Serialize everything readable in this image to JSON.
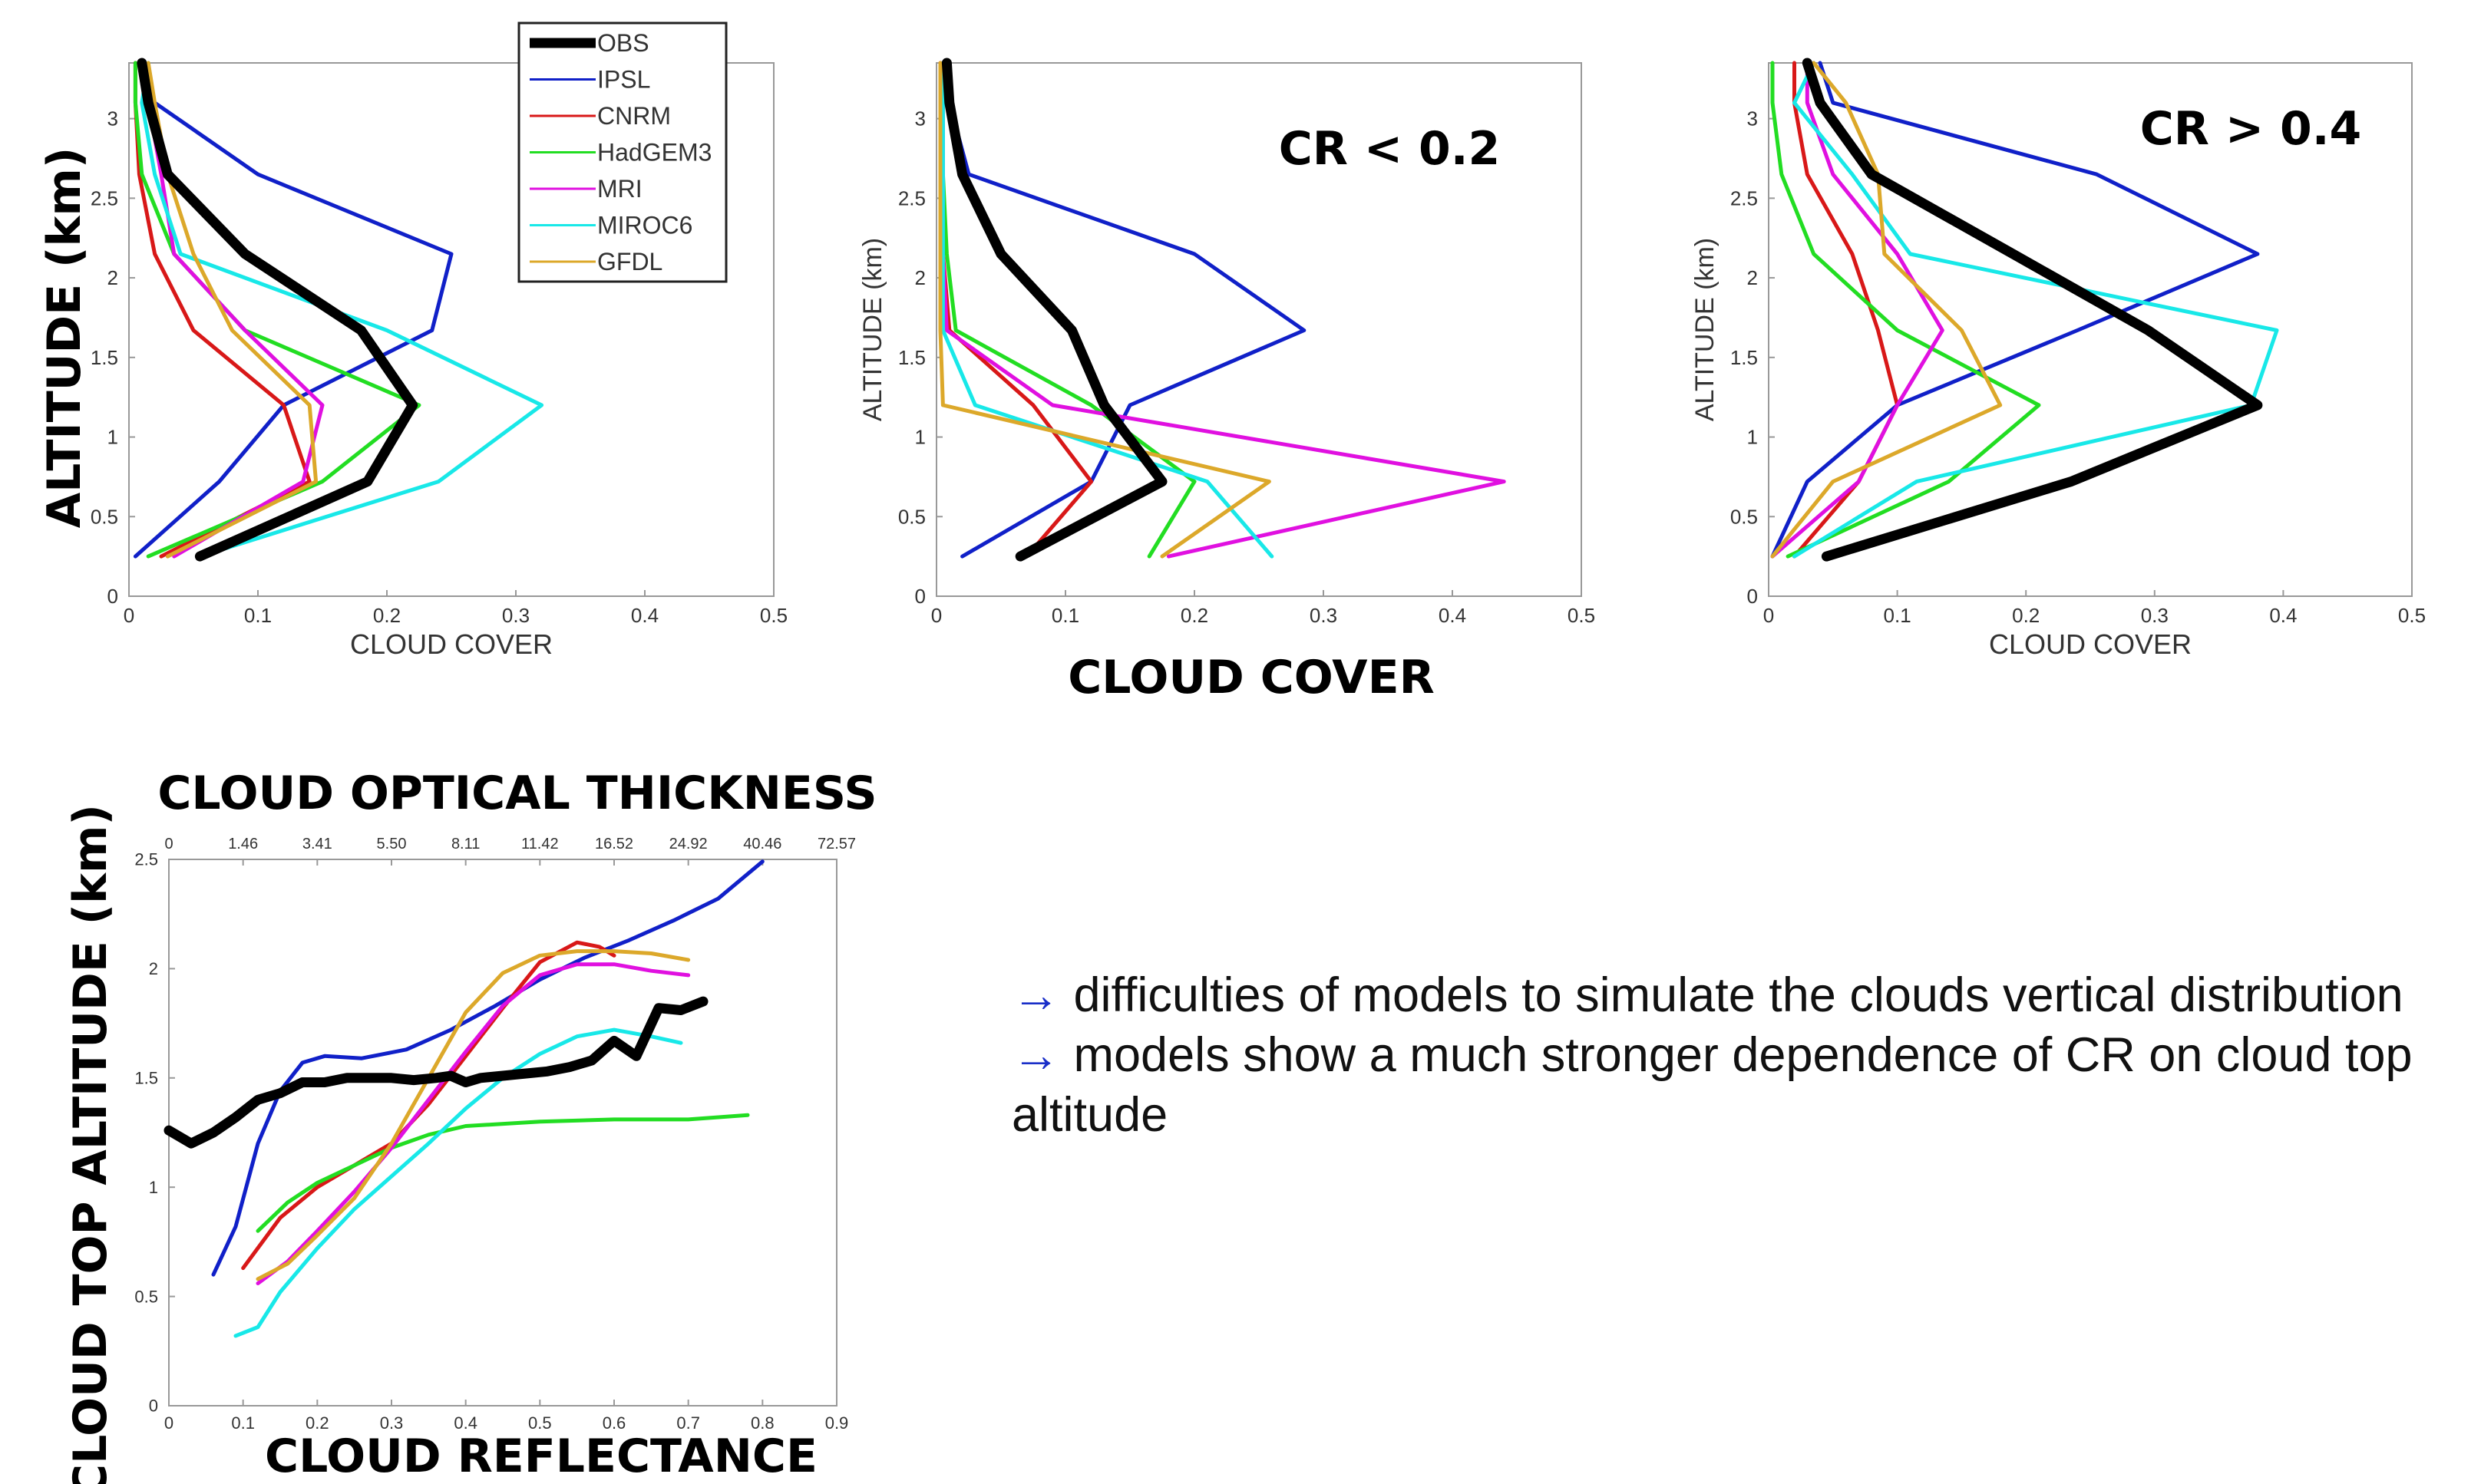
{
  "series_styles": {
    "OBS": {
      "color": "#000000",
      "width": 13
    },
    "IPSL": {
      "color": "#1020c8",
      "width": 5
    },
    "CNRM": {
      "color": "#d81818",
      "width": 5
    },
    "HadGEM3": {
      "color": "#22dd22",
      "width": 5
    },
    "MRI": {
      "color": "#e010e0",
      "width": 5
    },
    "MIROC6": {
      "color": "#18e8e8",
      "width": 5
    },
    "GFDL": {
      "color": "#dca82a",
      "width": 5
    }
  },
  "legend": {
    "entries": [
      "OBS",
      "IPSL",
      "CNRM",
      "HadGEM3",
      "MRI",
      "MIROC6",
      "GFDL"
    ]
  },
  "labels": {
    "left_ylabel": "ALTITUDE (km)",
    "center_xlabel": "CLOUD COVER",
    "bottom_top_title": "CLOUD OPTICAL THICKNESS",
    "bottom_ylabel": "CLOUD TOP ALTITUDE (km)",
    "bottom_xlabel": "CLOUD REFLECTANCE"
  },
  "notes": {
    "arrow": "→",
    "line1": "difficulties of models to simulate the clouds vertical distribution",
    "line2": "models show a much stronger dependence of CR on cloud top altitude"
  },
  "chart_data": [
    {
      "type": "line",
      "annotation": "",
      "xlabel": "CLOUD COVER",
      "ylabel": "ALTITUDE (km)",
      "xlim": [
        0,
        0.5
      ],
      "ylim": [
        0,
        3.35
      ],
      "xticks": [
        "0",
        "0.1",
        "0.2",
        "0.3",
        "0.4",
        "0.5"
      ],
      "yticks": [
        "0",
        "0.5",
        "1",
        "1.5",
        "2",
        "2.5",
        "3"
      ],
      "series": [
        {
          "name": "OBS",
          "x": [
            0.055,
            0.185,
            0.22,
            0.18,
            0.09,
            0.03,
            0.015,
            0.01
          ],
          "y": [
            0.25,
            0.72,
            1.2,
            1.67,
            2.15,
            2.65,
            3.1,
            3.35
          ]
        },
        {
          "name": "IPSL",
          "x": [
            0.005,
            0.07,
            0.12,
            0.235,
            0.25,
            0.1,
            0.02,
            0.01
          ],
          "y": [
            0.25,
            0.72,
            1.2,
            1.67,
            2.15,
            2.65,
            3.1,
            3.35
          ]
        },
        {
          "name": "CNRM",
          "x": [
            0.025,
            0.14,
            0.12,
            0.05,
            0.02,
            0.008,
            0.005,
            0.005
          ],
          "y": [
            0.25,
            0.72,
            1.2,
            1.67,
            2.15,
            2.65,
            3.1,
            3.35
          ]
        },
        {
          "name": "HadGEM3",
          "x": [
            0.015,
            0.15,
            0.225,
            0.09,
            0.035,
            0.01,
            0.005,
            0.005
          ],
          "y": [
            0.25,
            0.72,
            1.2,
            1.67,
            2.15,
            2.65,
            3.1,
            3.35
          ]
        },
        {
          "name": "MRI",
          "x": [
            0.035,
            0.135,
            0.15,
            0.09,
            0.035,
            0.025,
            0.015,
            0.01
          ],
          "y": [
            0.25,
            0.72,
            1.2,
            1.67,
            2.15,
            2.65,
            3.1,
            3.35
          ]
        },
        {
          "name": "MIROC6",
          "x": [
            0.055,
            0.24,
            0.32,
            0.2,
            0.04,
            0.02,
            0.01,
            0.015
          ],
          "y": [
            0.25,
            0.72,
            1.2,
            1.67,
            2.15,
            2.65,
            3.1,
            3.35
          ]
        },
        {
          "name": "GFDL",
          "x": [
            0.03,
            0.145,
            0.14,
            0.08,
            0.05,
            0.03,
            0.02,
            0.015
          ],
          "y": [
            0.25,
            0.72,
            1.2,
            1.67,
            2.15,
            2.65,
            3.1,
            3.35
          ]
        }
      ]
    },
    {
      "type": "line",
      "annotation": "CR < 0.2",
      "xlabel": "",
      "ylabel": "ALTITUDE (km)",
      "xlim": [
        0,
        0.5
      ],
      "ylim": [
        0,
        3.35
      ],
      "xticks": [
        "0",
        "0.1",
        "0.2",
        "0.3",
        "0.4",
        "0.5"
      ],
      "yticks": [
        "0",
        "0.5",
        "1",
        "1.5",
        "2",
        "2.5",
        "3"
      ],
      "series": [
        {
          "name": "OBS",
          "x": [
            0.065,
            0.175,
            0.13,
            0.105,
            0.05,
            0.02,
            0.01,
            0.008
          ],
          "y": [
            0.25,
            0.72,
            1.2,
            1.67,
            2.15,
            2.65,
            3.1,
            3.35
          ]
        },
        {
          "name": "IPSL",
          "x": [
            0.02,
            0.12,
            0.15,
            0.285,
            0.2,
            0.025,
            0.01,
            0.005
          ],
          "y": [
            0.25,
            0.72,
            1.2,
            1.67,
            2.15,
            2.65,
            3.1,
            3.35
          ]
        },
        {
          "name": "CNRM",
          "x": [
            0.07,
            0.12,
            0.075,
            0.01,
            0.005,
            0.003,
            0.003,
            0.003
          ],
          "y": [
            0.25,
            0.72,
            1.2,
            1.67,
            2.15,
            2.65,
            3.1,
            3.35
          ]
        },
        {
          "name": "HadGEM3",
          "x": [
            0.165,
            0.2,
            0.12,
            0.015,
            0.008,
            0.005,
            0.005,
            0.005
          ],
          "y": [
            0.25,
            0.72,
            1.2,
            1.67,
            2.15,
            2.65,
            3.1,
            3.35
          ]
        },
        {
          "name": "MRI",
          "x": [
            0.18,
            0.44,
            0.09,
            0.008,
            0.005,
            0.005,
            0.005,
            0.005
          ],
          "y": [
            0.25,
            0.72,
            1.2,
            1.67,
            2.15,
            2.65,
            3.1,
            3.35
          ]
        },
        {
          "name": "MIROC6",
          "x": [
            0.26,
            0.21,
            0.03,
            0.005,
            0.005,
            0.005,
            0.005,
            0.005
          ],
          "y": [
            0.25,
            0.72,
            1.2,
            1.67,
            2.15,
            2.65,
            3.1,
            3.35
          ]
        },
        {
          "name": "GFDL",
          "x": [
            0.175,
            0.258,
            0.005,
            0.003,
            0.003,
            0.003,
            0.003,
            0.003
          ],
          "y": [
            0.25,
            0.72,
            1.2,
            1.67,
            2.15,
            2.65,
            3.1,
            3.35
          ]
        }
      ]
    },
    {
      "type": "line",
      "annotation": "CR > 0.4",
      "xlabel": "CLOUD COVER",
      "ylabel": "ALTITUDE (km)",
      "xlim": [
        0,
        0.5
      ],
      "ylim": [
        0,
        3.35
      ],
      "xticks": [
        "0",
        "0.1",
        "0.2",
        "0.3",
        "0.4",
        "0.5"
      ],
      "yticks": [
        "0",
        "0.5",
        "1",
        "1.5",
        "2",
        "2.5",
        "3"
      ],
      "series": [
        {
          "name": "OBS",
          "x": [
            0.045,
            0.235,
            0.38,
            0.295,
            0.19,
            0.08,
            0.04,
            0.03
          ],
          "y": [
            0.25,
            0.72,
            1.2,
            1.67,
            2.15,
            2.65,
            3.1,
            3.35
          ]
        },
        {
          "name": "IPSL",
          "x": [
            0.003,
            0.03,
            0.1,
            0.24,
            0.38,
            0.255,
            0.05,
            0.04
          ],
          "y": [
            0.25,
            0.72,
            1.2,
            1.67,
            2.15,
            2.65,
            3.1,
            3.35
          ]
        },
        {
          "name": "CNRM",
          "x": [
            0.02,
            0.07,
            0.1,
            0.085,
            0.065,
            0.03,
            0.02,
            0.02
          ],
          "y": [
            0.25,
            0.72,
            1.2,
            1.67,
            2.15,
            2.65,
            3.1,
            3.35
          ]
        },
        {
          "name": "HadGEM3",
          "x": [
            0.015,
            0.14,
            0.21,
            0.1,
            0.035,
            0.01,
            0.003,
            0.003
          ],
          "y": [
            0.25,
            0.72,
            1.2,
            1.67,
            2.15,
            2.65,
            3.1,
            3.35
          ]
        },
        {
          "name": "MRI",
          "x": [
            0.003,
            0.07,
            0.1,
            0.135,
            0.1,
            0.05,
            0.03,
            0.03
          ],
          "y": [
            0.25,
            0.72,
            1.2,
            1.67,
            2.15,
            2.65,
            3.1,
            3.35
          ]
        },
        {
          "name": "MIROC6",
          "x": [
            0.02,
            0.115,
            0.375,
            0.395,
            0.11,
            0.065,
            0.02,
            0.035
          ],
          "y": [
            0.25,
            0.72,
            1.2,
            1.67,
            2.15,
            2.65,
            3.1,
            3.35
          ]
        },
        {
          "name": "GFDL",
          "x": [
            0.003,
            0.05,
            0.18,
            0.15,
            0.09,
            0.085,
            0.06,
            0.035
          ],
          "y": [
            0.25,
            0.72,
            1.2,
            1.67,
            2.15,
            2.65,
            3.1,
            3.35
          ]
        }
      ]
    },
    {
      "type": "line",
      "xlabel": "CLOUD REFLECTANCE",
      "ylabel": "CLOUD TOP ALTITUDE (km)",
      "top_axis_label": "CLOUD OPTICAL THICKNESS",
      "xlim": [
        0,
        0.9
      ],
      "ylim": [
        0,
        2.5
      ],
      "xticks": [
        "0",
        "0.1",
        "0.2",
        "0.3",
        "0.4",
        "0.5",
        "0.6",
        "0.7",
        "0.8",
        "0.9"
      ],
      "yticks": [
        "0",
        "0.5",
        "1",
        "1.5",
        "2",
        "2.5"
      ],
      "top_ticks": [
        "0",
        "1.46",
        "3.41",
        "5.50",
        "8.11",
        "11.42",
        "16.52",
        "24.92",
        "40.46",
        "72.57"
      ],
      "series": [
        {
          "name": "OBS",
          "x": [
            0.0,
            0.03,
            0.06,
            0.09,
            0.12,
            0.15,
            0.18,
            0.21,
            0.24,
            0.27,
            0.3,
            0.33,
            0.36,
            0.38,
            0.4,
            0.42,
            0.45,
            0.48,
            0.51,
            0.54,
            0.57,
            0.6,
            0.63,
            0.66,
            0.69,
            0.72
          ],
          "y": [
            1.26,
            1.2,
            1.25,
            1.32,
            1.4,
            1.43,
            1.48,
            1.48,
            1.5,
            1.5,
            1.5,
            1.49,
            1.5,
            1.51,
            1.48,
            1.5,
            1.51,
            1.52,
            1.53,
            1.55,
            1.58,
            1.67,
            1.6,
            1.82,
            1.81,
            1.85
          ]
        },
        {
          "name": "IPSL",
          "x": [
            0.06,
            0.09,
            0.12,
            0.15,
            0.18,
            0.21,
            0.26,
            0.32,
            0.38,
            0.44,
            0.5,
            0.56,
            0.62,
            0.68,
            0.74,
            0.8
          ],
          "y": [
            0.6,
            0.82,
            1.2,
            1.44,
            1.57,
            1.6,
            1.59,
            1.63,
            1.72,
            1.83,
            1.95,
            2.05,
            2.13,
            2.22,
            2.32,
            2.49
          ]
        },
        {
          "name": "CNRM",
          "x": [
            0.1,
            0.15,
            0.2,
            0.25,
            0.3,
            0.35,
            0.4,
            0.45,
            0.5,
            0.55,
            0.58,
            0.6
          ],
          "y": [
            0.63,
            0.86,
            1.0,
            1.1,
            1.2,
            1.38,
            1.6,
            1.82,
            2.03,
            2.12,
            2.1,
            2.06
          ]
        },
        {
          "name": "HadGEM3",
          "x": [
            0.12,
            0.16,
            0.2,
            0.25,
            0.3,
            0.35,
            0.4,
            0.5,
            0.6,
            0.7,
            0.78
          ],
          "y": [
            0.8,
            0.93,
            1.02,
            1.1,
            1.18,
            1.24,
            1.28,
            1.3,
            1.31,
            1.31,
            1.33
          ]
        },
        {
          "name": "MRI",
          "x": [
            0.12,
            0.16,
            0.2,
            0.25,
            0.3,
            0.35,
            0.4,
            0.45,
            0.5,
            0.55,
            0.6,
            0.65,
            0.7
          ],
          "y": [
            0.56,
            0.66,
            0.8,
            0.98,
            1.18,
            1.4,
            1.62,
            1.83,
            1.97,
            2.02,
            2.02,
            1.99,
            1.97
          ]
        },
        {
          "name": "MIROC6",
          "x": [
            0.09,
            0.12,
            0.15,
            0.2,
            0.25,
            0.3,
            0.35,
            0.4,
            0.45,
            0.5,
            0.55,
            0.6,
            0.65,
            0.69
          ],
          "y": [
            0.32,
            0.36,
            0.52,
            0.72,
            0.9,
            1.05,
            1.2,
            1.36,
            1.5,
            1.61,
            1.69,
            1.72,
            1.69,
            1.66
          ]
        },
        {
          "name": "GFDL",
          "x": [
            0.12,
            0.16,
            0.2,
            0.25,
            0.3,
            0.35,
            0.4,
            0.45,
            0.5,
            0.55,
            0.6,
            0.65,
            0.7
          ],
          "y": [
            0.58,
            0.65,
            0.78,
            0.95,
            1.2,
            1.5,
            1.8,
            1.98,
            2.06,
            2.08,
            2.08,
            2.07,
            2.04
          ]
        }
      ]
    }
  ]
}
